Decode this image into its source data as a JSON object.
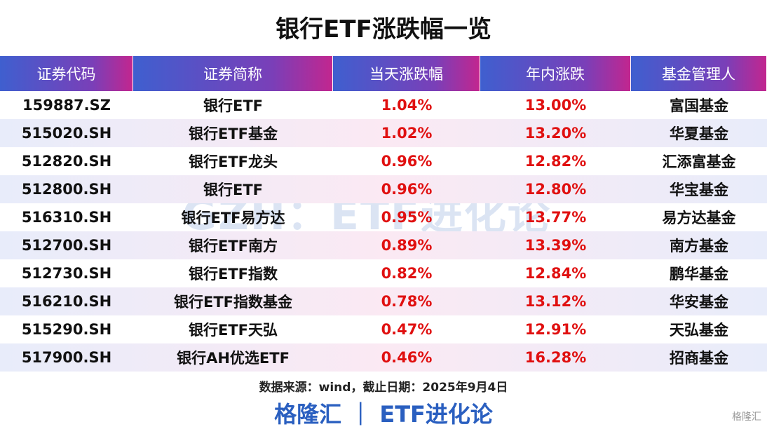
{
  "title": "银行ETF涨跌幅一览",
  "table": {
    "headers": [
      "证券代码",
      "证券简称",
      "当天涨跌幅",
      "年内涨跌",
      "基金管理人"
    ],
    "rows": [
      [
        "159887.SZ",
        "银行ETF",
        "1.04%",
        "13.00%",
        "富国基金"
      ],
      [
        "515020.SH",
        "银行ETF基金",
        "1.02%",
        "13.20%",
        "华夏基金"
      ],
      [
        "512820.SH",
        "银行ETF龙头",
        "0.96%",
        "12.82%",
        "汇添富基金"
      ],
      [
        "512800.SH",
        "银行ETF",
        "0.96%",
        "12.80%",
        "华宝基金"
      ],
      [
        "516310.SH",
        "银行ETF易方达",
        "0.95%",
        "13.77%",
        "易方达基金"
      ],
      [
        "512700.SH",
        "银行ETF南方",
        "0.89%",
        "13.39%",
        "南方基金"
      ],
      [
        "512730.SH",
        "银行ETF指数",
        "0.82%",
        "12.84%",
        "鹏华基金"
      ],
      [
        "516210.SH",
        "银行ETF指数基金",
        "0.78%",
        "13.12%",
        "华安基金"
      ],
      [
        "515290.SH",
        "银行ETF天弘",
        "0.47%",
        "12.91%",
        "天弘基金"
      ],
      [
        "517900.SH",
        "银行AH优选ETF",
        "0.46%",
        "16.28%",
        "招商基金"
      ]
    ]
  },
  "watermark": "GZH：ETF进化论",
  "footer": {
    "source": "数据来源：wind，截止日期：2025年9月4日",
    "brand": "格隆汇 ｜ ETF进化论",
    "logo": "格隆汇"
  }
}
